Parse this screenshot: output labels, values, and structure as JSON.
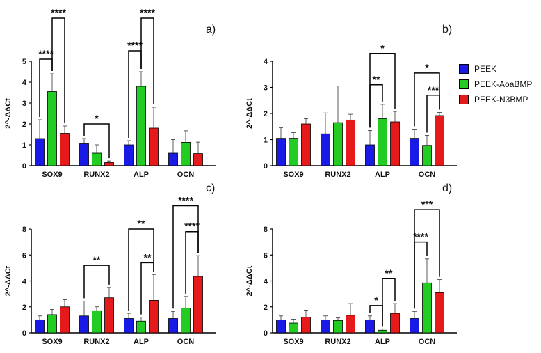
{
  "colors": {
    "PEEK": "#1a1ae6",
    "PEEK-AoaBMP": "#22cc22",
    "PEEK-N3BMP": "#e61a1a"
  },
  "legend": [
    "PEEK",
    "PEEK-AoaBMP",
    "PEEK-N3BMP"
  ],
  "chart_data": [
    {
      "id": "a",
      "panel_label": "a)",
      "type": "bar",
      "ylabel": "2^-ΔΔCt",
      "ylim": [
        0,
        5
      ],
      "yticks": [
        0,
        1,
        2,
        3,
        4,
        5
      ],
      "categories": [
        "SOX9",
        "RUNX2",
        "ALP",
        "OCN"
      ],
      "series": [
        {
          "name": "PEEK",
          "values": [
            1.3,
            1.05,
            1.0,
            0.6
          ],
          "errors": [
            0.9,
            0.25,
            0.2,
            0.65
          ]
        },
        {
          "name": "PEEK-AoaBMP",
          "values": [
            3.55,
            0.6,
            3.8,
            1.12
          ],
          "errors": [
            0.85,
            0.4,
            0.7,
            0.55
          ]
        },
        {
          "name": "PEEK-N3BMP",
          "values": [
            1.55,
            0.15,
            1.8,
            0.58
          ],
          "errors": [
            0.35,
            0.08,
            1.0,
            0.55
          ]
        }
      ],
      "annotations": [
        {
          "category": 0,
          "from": 0,
          "to": 1,
          "stars": "****",
          "y": 5.1
        },
        {
          "category": 0,
          "from": 1,
          "to": 2,
          "stars": "****",
          "y": 7.1
        },
        {
          "category": 1,
          "from": 0,
          "to": 2,
          "stars": "*",
          "y": 2.0
        },
        {
          "category": 2,
          "from": 0,
          "to": 1,
          "stars": "****",
          "y": 5.5
        },
        {
          "category": 2,
          "from": 1,
          "to": 2,
          "stars": "****",
          "y": 7.3
        }
      ]
    },
    {
      "id": "b",
      "panel_label": "b)",
      "type": "bar",
      "ylabel": "2^-ΔΔCt",
      "ylim": [
        0,
        4
      ],
      "yticks": [
        0,
        1,
        2,
        3,
        4
      ],
      "categories": [
        "SOX9",
        "RUNX2",
        "ALP",
        "OCN"
      ],
      "series": [
        {
          "name": "PEEK",
          "values": [
            1.05,
            1.22,
            0.8,
            1.05
          ],
          "errors": [
            0.4,
            0.8,
            0.55,
            0.35
          ]
        },
        {
          "name": "PEEK-AoaBMP",
          "values": [
            1.05,
            1.65,
            1.8,
            0.78
          ],
          "errors": [
            0.22,
            1.4,
            0.55,
            0.38
          ]
        },
        {
          "name": "PEEK-N3BMP",
          "values": [
            1.6,
            1.75,
            1.68,
            1.92
          ],
          "errors": [
            0.2,
            0.22,
            0.4,
            0.12
          ]
        }
      ],
      "annotations": [
        {
          "category": 2,
          "from": 0,
          "to": 1,
          "stars": "**",
          "y": 3.1
        },
        {
          "category": 2,
          "from": 0,
          "to": 2,
          "stars": "*",
          "y": 4.3
        },
        {
          "category": 3,
          "from": 0,
          "to": 2,
          "stars": "*",
          "y": 3.55
        },
        {
          "category": 3,
          "from": 1,
          "to": 2,
          "stars": "***",
          "y": 2.7
        }
      ]
    },
    {
      "id": "c",
      "panel_label": "c)",
      "type": "bar",
      "ylabel": "2^-ΔΔCt",
      "ylim": [
        0,
        8
      ],
      "yticks": [
        0,
        2,
        4,
        6,
        8
      ],
      "categories": [
        "SOX9",
        "RUNX2",
        "ALP",
        "OCN"
      ],
      "series": [
        {
          "name": "PEEK",
          "values": [
            1.0,
            1.3,
            1.1,
            1.1
          ],
          "errors": [
            0.3,
            1.15,
            0.4,
            0.55
          ]
        },
        {
          "name": "PEEK-AoaBMP",
          "values": [
            1.4,
            1.7,
            0.9,
            1.9
          ],
          "errors": [
            0.4,
            0.3,
            0.3,
            0.9
          ]
        },
        {
          "name": "PEEK-N3BMP",
          "values": [
            2.0,
            2.7,
            2.5,
            4.35
          ],
          "errors": [
            0.55,
            0.8,
            2.0,
            1.6
          ]
        }
      ],
      "annotations": [
        {
          "category": 1,
          "from": 0,
          "to": 2,
          "stars": "**",
          "y": 5.2
        },
        {
          "category": 2,
          "from": 0,
          "to": 2,
          "stars": "**",
          "y": 8.0
        },
        {
          "category": 2,
          "from": 1,
          "to": 2,
          "stars": "**",
          "y": 5.4
        },
        {
          "category": 3,
          "from": 0,
          "to": 2,
          "stars": "****",
          "y": 9.8
        },
        {
          "category": 3,
          "from": 1,
          "to": 2,
          "stars": "****",
          "y": 7.8
        }
      ]
    },
    {
      "id": "d",
      "panel_label": "d)",
      "type": "bar",
      "ylabel": "2^-ΔΔCt",
      "ylim": [
        0,
        8
      ],
      "yticks": [
        0,
        2,
        4,
        6,
        8
      ],
      "categories": [
        "SOX9",
        "RUNX2",
        "ALP",
        "OCN"
      ],
      "series": [
        {
          "name": "PEEK",
          "values": [
            1.0,
            1.0,
            1.0,
            1.1
          ],
          "errors": [
            0.3,
            0.3,
            0.3,
            0.55
          ]
        },
        {
          "name": "PEEK-AoaBMP",
          "values": [
            0.75,
            0.95,
            0.2,
            3.85
          ],
          "errors": [
            0.3,
            0.2,
            0.1,
            1.85
          ]
        },
        {
          "name": "PEEK-N3BMP",
          "values": [
            1.2,
            1.35,
            1.5,
            3.1
          ],
          "errors": [
            0.55,
            0.9,
            0.75,
            1.0
          ]
        }
      ],
      "annotations": [
        {
          "category": 2,
          "from": 0,
          "to": 1,
          "stars": "*",
          "y": 2.1
        },
        {
          "category": 2,
          "from": 1,
          "to": 2,
          "stars": "**",
          "y": 4.2
        },
        {
          "category": 3,
          "from": 0,
          "to": 1,
          "stars": "****",
          "y": 7.0
        },
        {
          "category": 3,
          "from": 0,
          "to": 2,
          "stars": "***",
          "y": 9.5
        }
      ]
    }
  ]
}
